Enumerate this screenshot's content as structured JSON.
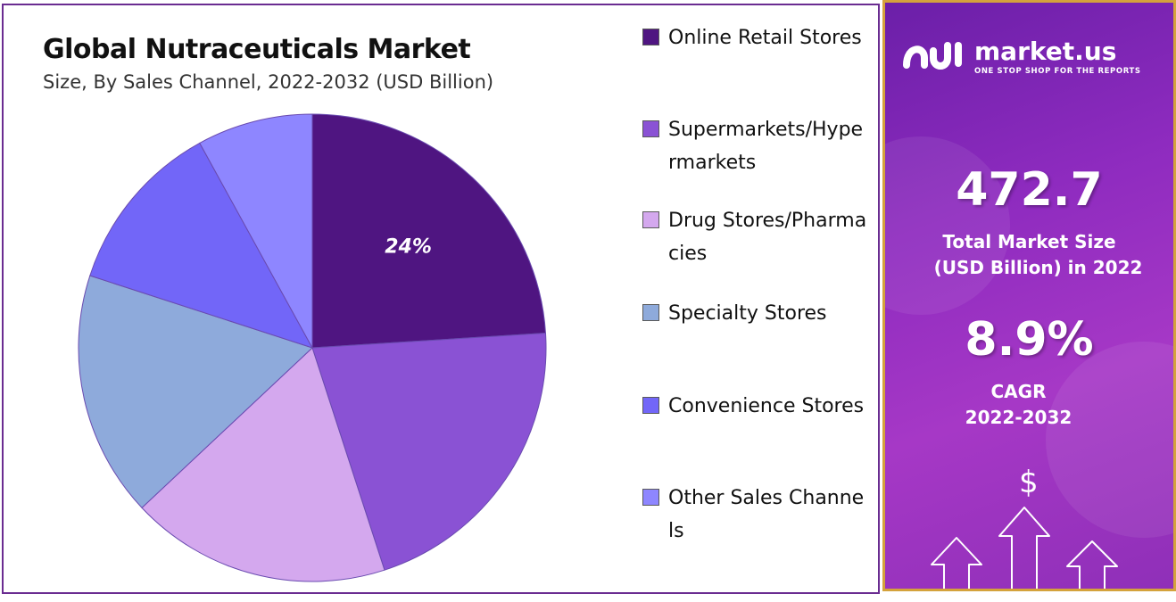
{
  "chart_data": {
    "type": "pie",
    "title": "Global Nutraceuticals Market",
    "subtitle": "Size, By Sales Channel, 2022-2032 (USD Billion)",
    "series": [
      {
        "name": "Online Retail Stores",
        "value": 24,
        "color": "#4f1581"
      },
      {
        "name": "Supermarkets/Hypermarkets",
        "value": 21,
        "color": "#8a52d4"
      },
      {
        "name": "Drug Stores/Pharmacies",
        "value": 18,
        "color": "#d4a8ee"
      },
      {
        "name": "Specialty Stores",
        "value": 17,
        "color": "#8eaadb"
      },
      {
        "name": "Convenience Stores",
        "value": 12,
        "color": "#7266f8"
      },
      {
        "name": "Other Sales Channels",
        "value": 8,
        "color": "#8e86ff"
      }
    ],
    "data_labels": [
      "24%",
      "",
      "",
      "",
      "",
      ""
    ],
    "legend_position": "right"
  },
  "info": {
    "brand": "market.us",
    "tagline": "ONE STOP SHOP FOR THE REPORTS",
    "market_size_value": "472.7",
    "market_size_label_line1": "Total Market Size",
    "market_size_label_line2": "(USD Billion) in 2022",
    "cagr_value": "8.9%",
    "cagr_label": "CAGR",
    "cagr_period": "2022-2032",
    "currency_symbol": "$",
    "icons": [
      "market-us-logo-icon",
      "arrow-up-icon"
    ]
  }
}
